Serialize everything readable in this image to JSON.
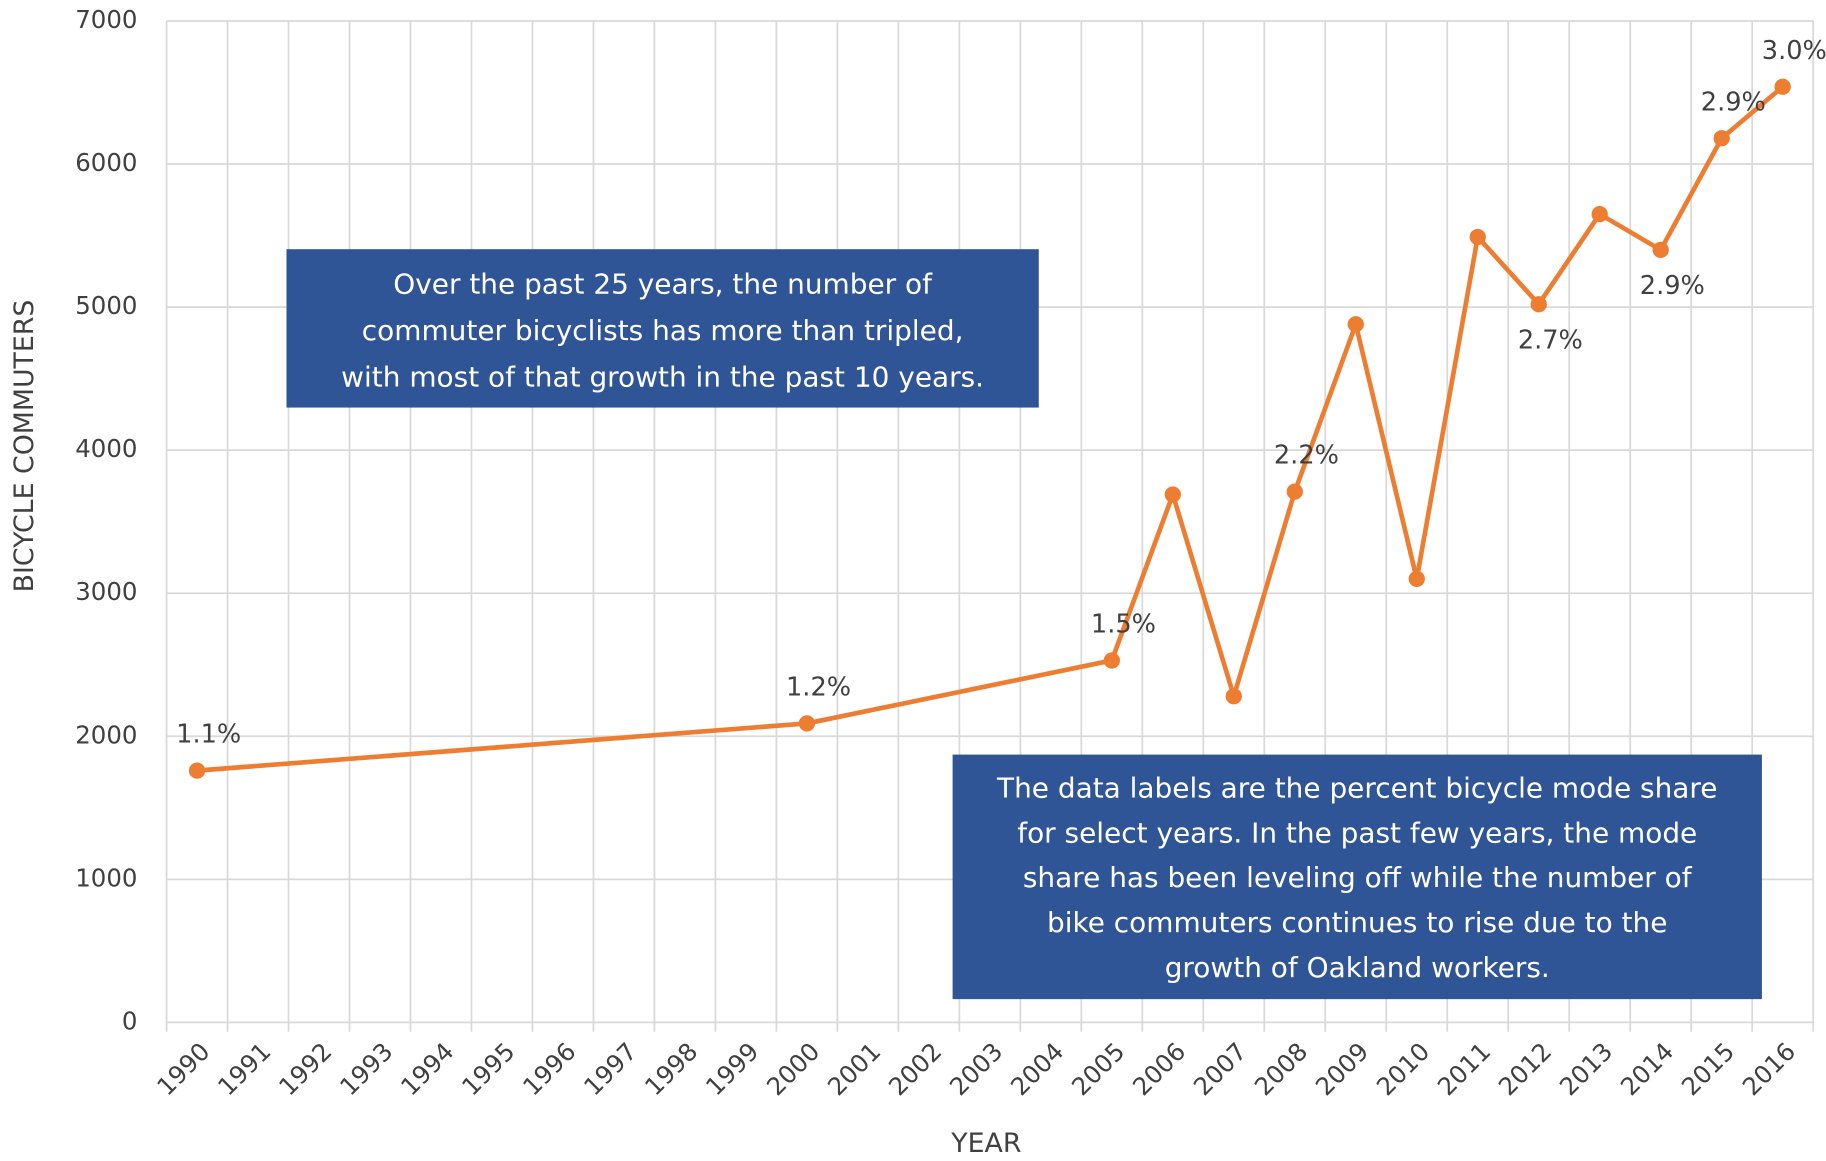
{
  "chart_data": {
    "type": "line",
    "x": [
      1990,
      2000,
      2005,
      2006,
      2007,
      2008,
      2009,
      2010,
      2011,
      2012,
      2013,
      2014,
      2015,
      2016
    ],
    "series": [
      {
        "name": "Bicycle commuters",
        "color": "#ed7d31",
        "values": [
          1760,
          2090,
          2530,
          3690,
          2280,
          3710,
          4880,
          3100,
          5490,
          5020,
          5650,
          5400,
          6180,
          6540
        ],
        "data_labels": [
          "1.1%",
          "1.2%",
          "1.5%",
          null,
          null,
          "2.2%",
          null,
          null,
          null,
          "2.7%",
          null,
          "2.9%",
          "2.9%",
          "3.0%"
        ]
      }
    ],
    "xlim": [
      1989.5,
      2016.5
    ],
    "xticks": [
      1990,
      1991,
      1992,
      1993,
      1994,
      1995,
      1996,
      1997,
      1998,
      1999,
      2000,
      2001,
      2002,
      2003,
      2004,
      2005,
      2006,
      2007,
      2008,
      2009,
      2010,
      2011,
      2012,
      2013,
      2014,
      2015,
      2016
    ],
    "ylim": [
      0,
      7000
    ],
    "yticks": [
      0,
      1000,
      2000,
      3000,
      4000,
      5000,
      6000,
      7000
    ],
    "x_label": "YEAR",
    "y_label": "BICYCLE COMMUTERS",
    "grid": true,
    "annotations": [
      {
        "lines": [
          "Over the past 25 years, the number of",
          "commuter bicyclists has more than tripled,",
          "with most of that growth in the past 10 years."
        ]
      },
      {
        "lines": [
          "The data labels are the percent bicycle mode share",
          "for select years.  In the past few years, the mode",
          "share has been leveling off while the number of",
          "bike commuters continues to rise due to the",
          "growth of Oakland workers."
        ]
      }
    ]
  }
}
